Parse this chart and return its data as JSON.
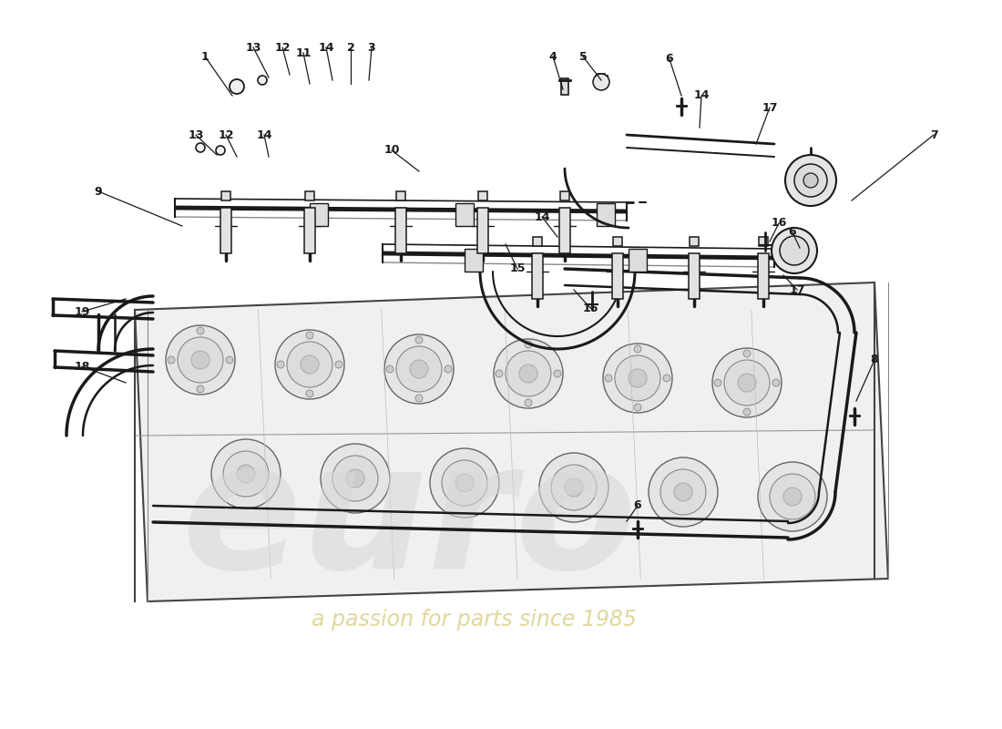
{
  "bg": "#ffffff",
  "lc": "#1a1a1a",
  "lc_light": "#888888",
  "lc_mid": "#555555",
  "wm_euro_color": "#d8d8d8",
  "wm_passion_color": "#d4c870",
  "wm_euro_alpha": 0.55,
  "wm_passion_alpha": 0.7,
  "fig_w": 11.0,
  "fig_h": 8.0,
  "dpi": 100,
  "labels": [
    [
      "1",
      225,
      62,
      255,
      105
    ],
    [
      "13",
      278,
      52,
      295,
      85
    ],
    [
      "12",
      310,
      52,
      318,
      82
    ],
    [
      "11",
      333,
      58,
      340,
      92
    ],
    [
      "14",
      358,
      52,
      365,
      88
    ],
    [
      "2",
      385,
      52,
      385,
      92
    ],
    [
      "3",
      408,
      52,
      405,
      88
    ],
    [
      "13",
      215,
      148,
      238,
      170
    ],
    [
      "12",
      248,
      148,
      260,
      172
    ],
    [
      "14",
      290,
      148,
      295,
      172
    ],
    [
      "9",
      108,
      210,
      200,
      248
    ],
    [
      "10",
      430,
      165,
      460,
      188
    ],
    [
      "4",
      607,
      62,
      618,
      98
    ],
    [
      "5",
      640,
      62,
      660,
      88
    ],
    [
      "6",
      735,
      65,
      748,
      105
    ],
    [
      "14",
      770,
      105,
      768,
      140
    ],
    [
      "17",
      845,
      118,
      830,
      158
    ],
    [
      "7",
      1025,
      148,
      935,
      220
    ],
    [
      "14",
      595,
      238,
      612,
      260
    ],
    [
      "15",
      568,
      295,
      555,
      268
    ],
    [
      "16",
      648,
      338,
      630,
      318
    ],
    [
      "6",
      870,
      255,
      878,
      272
    ],
    [
      "16",
      855,
      245,
      845,
      265
    ],
    [
      "17",
      875,
      318,
      860,
      302
    ],
    [
      "6",
      700,
      555,
      688,
      572
    ],
    [
      "8",
      960,
      395,
      940,
      440
    ],
    [
      "19",
      90,
      342,
      138,
      328
    ],
    [
      "18",
      90,
      402,
      138,
      420
    ]
  ]
}
